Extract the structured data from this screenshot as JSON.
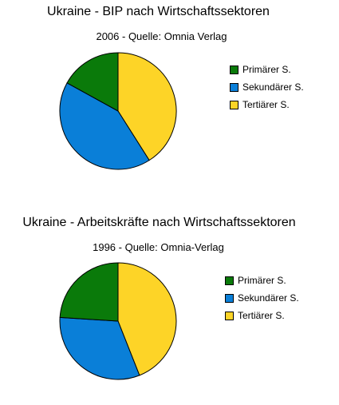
{
  "chart_data": [
    {
      "type": "pie",
      "title": "Ukraine -  BIP nach Wirtschaftssektoren",
      "subtitle": "2006 - Quelle: Omnia Verlag",
      "series": [
        {
          "name": "Primärer S.",
          "value": 17,
          "color": "#0a7a0a"
        },
        {
          "name": "Sekundärer S.",
          "value": 42,
          "color": "#0a7fd8"
        },
        {
          "name": "Tertiärer S.",
          "value": 41,
          "color": "#fdd427"
        }
      ],
      "legend_position": "right"
    },
    {
      "type": "pie",
      "title": "Ukraine - Arbeitskräfte nach Wirtschaftssektoren",
      "subtitle": "1996 - Quelle: Omnia-Verlag",
      "series": [
        {
          "name": "Primärer S.",
          "value": 24,
          "color": "#0a7a0a"
        },
        {
          "name": "Sekundärer S.",
          "value": 32,
          "color": "#0a7fd8"
        },
        {
          "name": "Tertiärer S.",
          "value": 44,
          "color": "#fdd427"
        }
      ],
      "legend_position": "right"
    }
  ]
}
